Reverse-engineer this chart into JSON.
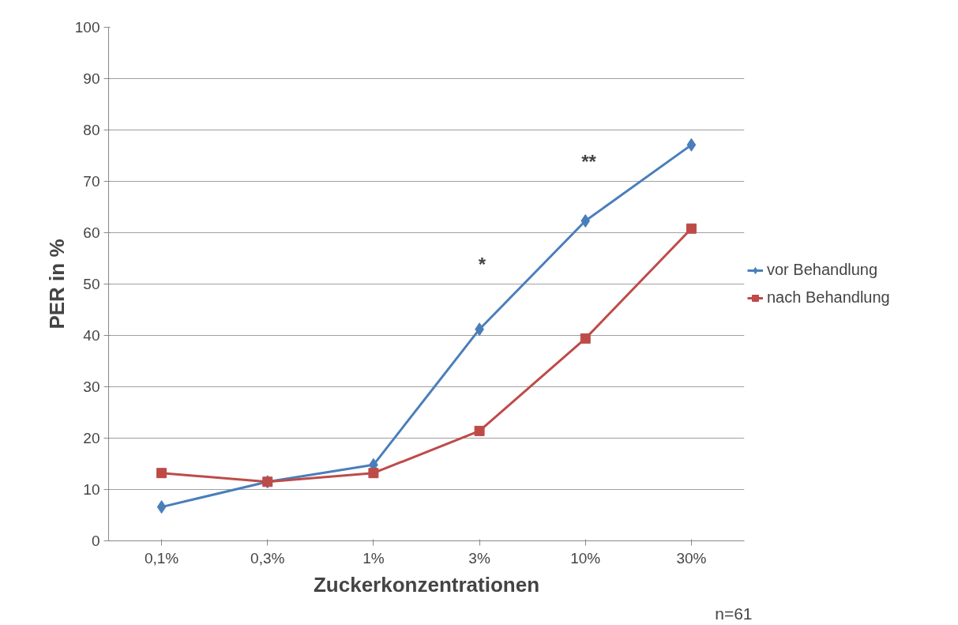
{
  "chart_data": {
    "type": "line",
    "xlabel": "Zuckerkonzentrationen",
    "ylabel": "PER in %",
    "categories": [
      "0,1%",
      "0,3%",
      "1%",
      "3%",
      "10%",
      "30%"
    ],
    "series": [
      {
        "name": "vor Behandlung",
        "color": "#4a7ebb",
        "marker": "diamond",
        "values": [
          6.6,
          11.5,
          14.8,
          41.2,
          62.3,
          77.1
        ]
      },
      {
        "name": "nach Behandlung",
        "color": "#be4b48",
        "marker": "square",
        "values": [
          13.2,
          11.5,
          13.2,
          21.4,
          39.4,
          60.8
        ]
      }
    ],
    "ylim": [
      0,
      100
    ],
    "yticks": [
      0,
      10,
      20,
      30,
      40,
      50,
      60,
      70,
      80,
      90,
      100
    ],
    "grid": "y",
    "legend": "right",
    "annotations": [
      "*",
      "**",
      "n=61"
    ]
  }
}
